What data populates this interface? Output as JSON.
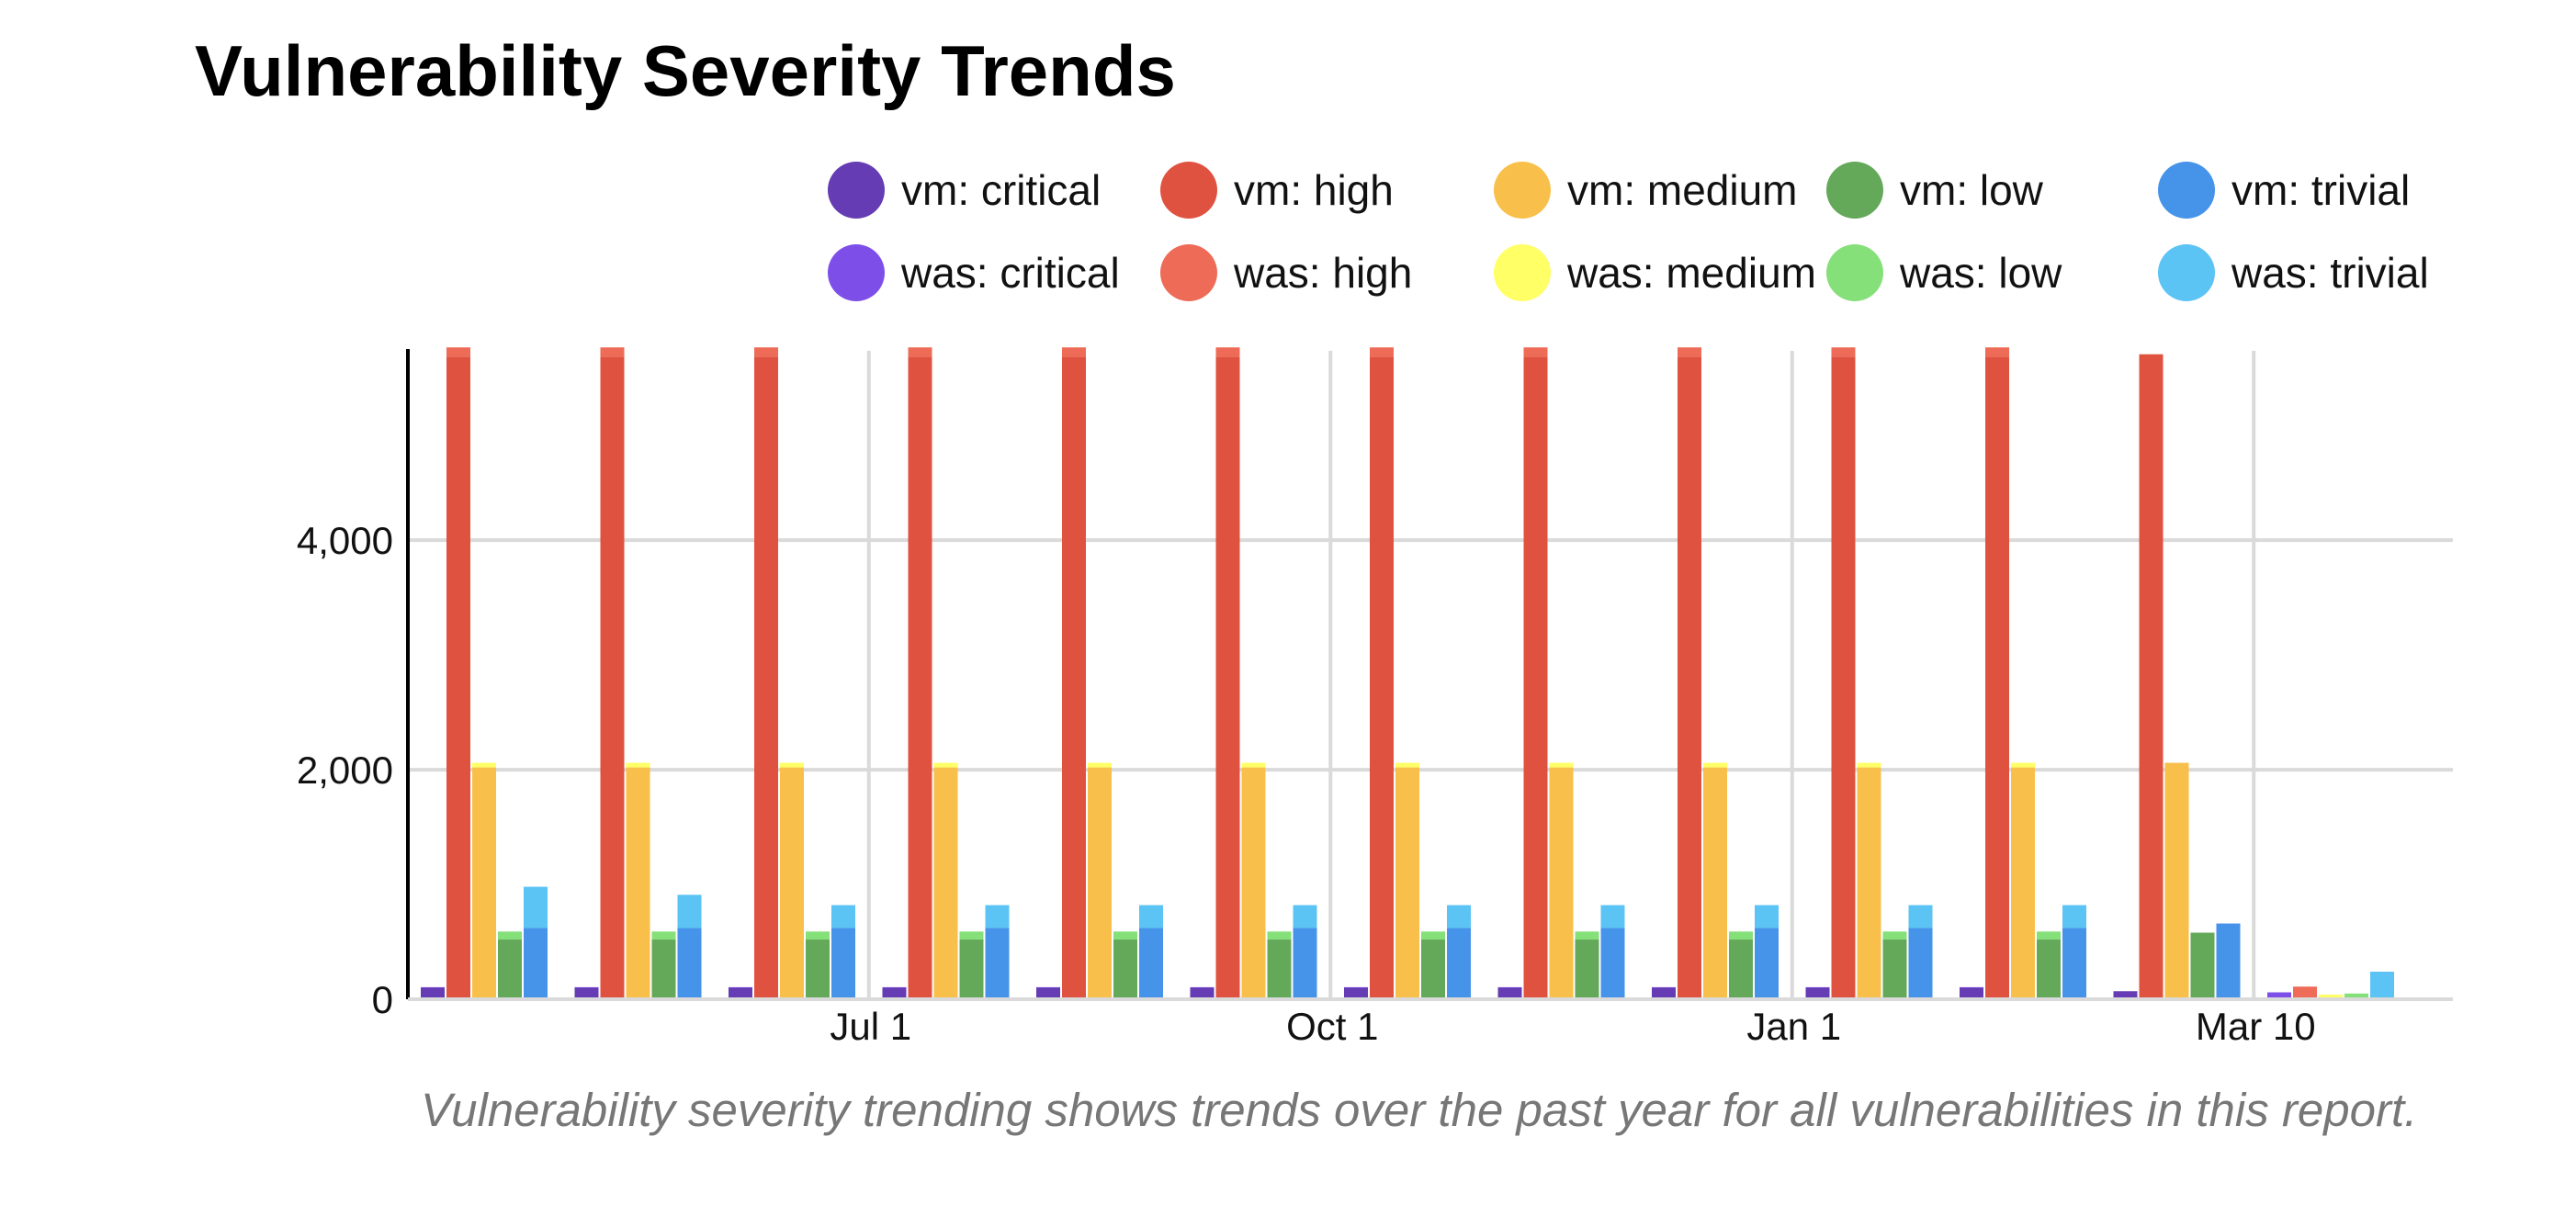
{
  "chart_data": {
    "type": "bar",
    "title": "Vulnerability Severity Trends",
    "caption": "Vulnerability severity trending shows trends over the past year for all vulnerabilities in this report.",
    "xlabel": "",
    "ylabel": "",
    "ylim": [
      0,
      5650
    ],
    "y_ticks": [
      0,
      2000,
      4000
    ],
    "y_tick_labels": [
      "0",
      "2,000",
      "4,000"
    ],
    "x_tick_labels": [
      {
        "label": "Jul 1",
        "boundary": 2.5
      },
      {
        "label": "Oct 1",
        "boundary": 5.5
      },
      {
        "label": "Jan 1",
        "boundary": 8.5
      },
      {
        "label": "Mar 10",
        "boundary": 11.5
      }
    ],
    "grid": true,
    "legend_position": "top",
    "groups": 13,
    "series": [
      {
        "name": "vm: critical",
        "color": "#653CB3",
        "stack": "critical",
        "values": [
          100,
          100,
          100,
          100,
          100,
          100,
          100,
          100,
          100,
          100,
          100,
          70,
          0
        ]
      },
      {
        "name": "was: critical",
        "color": "#7E4FE8",
        "stack": "critical",
        "values": [
          5,
          5,
          5,
          5,
          5,
          5,
          5,
          5,
          5,
          5,
          5,
          0,
          60
        ]
      },
      {
        "name": "vm: high",
        "color": "#E05240",
        "stack": "high",
        "values": [
          5600,
          5600,
          5600,
          5600,
          5600,
          5600,
          5600,
          5600,
          5600,
          5600,
          5600,
          5620,
          0
        ]
      },
      {
        "name": "was: high",
        "color": "#EE6B57",
        "stack": "high",
        "values": [
          80,
          80,
          80,
          80,
          80,
          80,
          80,
          80,
          80,
          80,
          80,
          0,
          110
        ]
      },
      {
        "name": "vm: medium",
        "color": "#F8C04A",
        "stack": "medium",
        "values": [
          2020,
          2020,
          2020,
          2020,
          2020,
          2020,
          2020,
          2020,
          2020,
          2020,
          2020,
          2060,
          0
        ]
      },
      {
        "name": "was: medium",
        "color": "#FFFF66",
        "stack": "medium",
        "values": [
          40,
          40,
          40,
          40,
          40,
          40,
          40,
          40,
          40,
          40,
          40,
          0,
          40
        ]
      },
      {
        "name": "vm: low",
        "color": "#64A85A",
        "stack": "low",
        "values": [
          520,
          520,
          520,
          520,
          520,
          520,
          520,
          520,
          520,
          520,
          520,
          580,
          0
        ]
      },
      {
        "name": "was: low",
        "color": "#86E07A",
        "stack": "low",
        "values": [
          70,
          70,
          70,
          70,
          70,
          70,
          70,
          70,
          70,
          70,
          70,
          0,
          50
        ]
      },
      {
        "name": "vm: trivial",
        "color": "#4693EA",
        "stack": "trivial",
        "values": [
          620,
          620,
          620,
          620,
          620,
          620,
          620,
          620,
          620,
          620,
          620,
          660,
          0
        ]
      },
      {
        "name": "was: trivial",
        "color": "#5CC3F5",
        "stack": "trivial",
        "values": [
          360,
          290,
          200,
          200,
          200,
          200,
          200,
          200,
          200,
          200,
          200,
          0,
          240
        ]
      }
    ]
  },
  "colors": {
    "grid": "#DADADA",
    "axis": "#000000",
    "text": "#111111",
    "caption": "#777777"
  }
}
